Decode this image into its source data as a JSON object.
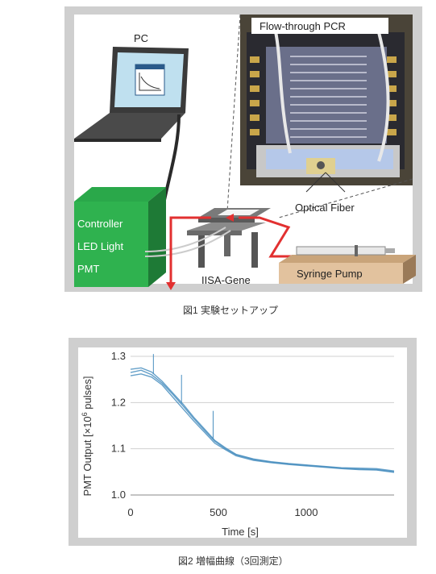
{
  "figure1": {
    "caption": "図1 実験セットアップ",
    "labels": {
      "pc": "PC",
      "controller": "Controller",
      "led": "LED Light",
      "pmt": "PMT",
      "flow_pcr": "Flow-through PCR",
      "optical_fiber": "Optical Fiber",
      "iisa_gene": "IISA-Gene",
      "syringe_pump": "Syringe Pump"
    }
  },
  "figure2": {
    "caption": "図2 増幅曲線（3回測定）"
  },
  "chart_data": {
    "type": "line",
    "xlabel": "Time [s]",
    "ylabel": "PMT Output [×10⁶ pulses]",
    "ylabel_parts": {
      "pre": "PMT Output [×10",
      "sup": "6",
      "post": " pulses]"
    },
    "xlim": [
      0,
      1500
    ],
    "ylim": [
      1.0,
      1.3
    ],
    "xticks": [
      0,
      500,
      1000
    ],
    "xtick_labels": [
      "0",
      "500",
      "1000"
    ],
    "yticks": [
      1.0,
      1.1,
      1.2,
      1.3
    ],
    "ytick_labels": [
      "1.0",
      "1.1",
      "1.2",
      "1.3"
    ],
    "grid": true,
    "color": "#4a8fc0",
    "series": [
      {
        "x": [
          0,
          60,
          120,
          180,
          240,
          300,
          360,
          420,
          480,
          540,
          600,
          700,
          800,
          900,
          1000,
          1100,
          1200,
          1300,
          1400,
          1500
        ],
        "y": [
          1.272,
          1.275,
          1.266,
          1.246,
          1.221,
          1.196,
          1.168,
          1.143,
          1.118,
          1.102,
          1.088,
          1.078,
          1.072,
          1.068,
          1.065,
          1.062,
          1.059,
          1.058,
          1.057,
          1.052
        ]
      },
      {
        "x": [
          0,
          60,
          120,
          180,
          240,
          300,
          360,
          420,
          480,
          540,
          600,
          700,
          800,
          900,
          1000,
          1100,
          1200,
          1300,
          1400,
          1500
        ],
        "y": [
          1.265,
          1.27,
          1.26,
          1.242,
          1.218,
          1.192,
          1.165,
          1.14,
          1.116,
          1.1,
          1.087,
          1.077,
          1.071,
          1.067,
          1.064,
          1.061,
          1.058,
          1.056,
          1.055,
          1.05
        ]
      },
      {
        "x": [
          0,
          60,
          120,
          180,
          240,
          300,
          360,
          420,
          480,
          540,
          600,
          700,
          800,
          900,
          1000,
          1100,
          1200,
          1300,
          1400,
          1500
        ],
        "y": [
          1.258,
          1.262,
          1.255,
          1.238,
          1.212,
          1.186,
          1.16,
          1.136,
          1.112,
          1.098,
          1.085,
          1.075,
          1.07,
          1.066,
          1.063,
          1.06,
          1.057,
          1.055,
          1.054,
          1.049
        ]
      }
    ],
    "spikes": [
      {
        "x": 130,
        "y_from": 1.262,
        "y_to": 1.305
      },
      {
        "x": 290,
        "y_from": 1.198,
        "y_to": 1.26
      },
      {
        "x": 470,
        "y_from": 1.12,
        "y_to": 1.182
      }
    ]
  }
}
